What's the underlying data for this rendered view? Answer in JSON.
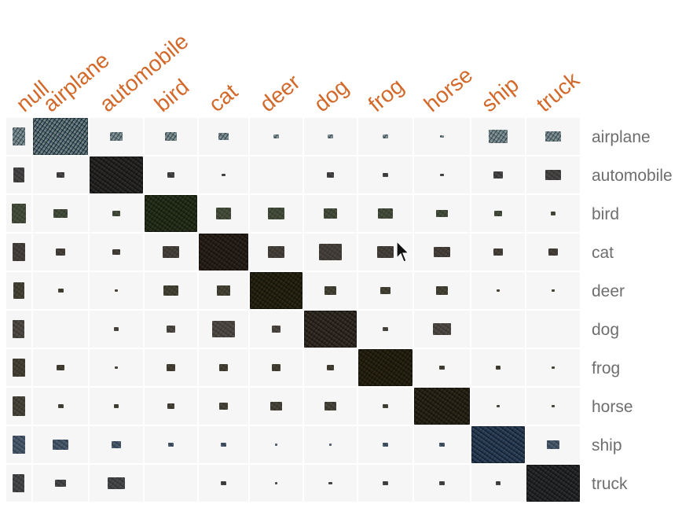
{
  "colors": {
    "label_orange": "#D2692A",
    "row_label_gray": "#6E6E6E",
    "cell_bg": "#F6F6F6"
  },
  "chart_data": {
    "type": "heatmap",
    "columns": [
      "null",
      "airplane",
      "automobile",
      "bird",
      "cat",
      "deer",
      "dog",
      "frog",
      "horse",
      "ship",
      "truck"
    ],
    "rows": [
      "airplane",
      "automobile",
      "bird",
      "cat",
      "deer",
      "dog",
      "frog",
      "horse",
      "ship",
      "truck"
    ],
    "values": [
      [
        0.25,
        1.0,
        0.06,
        0.05,
        0.04,
        0.01,
        0.01,
        0.01,
        0.005,
        0.12,
        0.08
      ],
      [
        0.18,
        0.02,
        1.0,
        0.02,
        0.005,
        0.0,
        0.02,
        0.01,
        0.005,
        0.03,
        0.08
      ],
      [
        0.3,
        0.06,
        0.02,
        1.0,
        0.1,
        0.1,
        0.07,
        0.07,
        0.04,
        0.02,
        0.01
      ],
      [
        0.25,
        0.03,
        0.02,
        0.1,
        1.0,
        0.1,
        0.2,
        0.1,
        0.08,
        0.03,
        0.03
      ],
      [
        0.2,
        0.01,
        0.005,
        0.08,
        0.08,
        1.0,
        0.05,
        0.04,
        0.05,
        0.005,
        0.005
      ],
      [
        0.22,
        0.0,
        0.01,
        0.03,
        0.2,
        0.03,
        1.0,
        0.01,
        0.1,
        0.0,
        0.0
      ],
      [
        0.25,
        0.02,
        0.005,
        0.03,
        0.03,
        0.03,
        0.02,
        1.0,
        0.01,
        0.01,
        0.005
      ],
      [
        0.28,
        0.01,
        0.01,
        0.02,
        0.03,
        0.05,
        0.05,
        0.01,
        1.0,
        0.005,
        0.005
      ],
      [
        0.25,
        0.08,
        0.03,
        0.01,
        0.01,
        0.002,
        0.002,
        0.01,
        0.01,
        1.0,
        0.06
      ],
      [
        0.22,
        0.04,
        0.1,
        0.0,
        0.01,
        0.002,
        0.005,
        0.01,
        0.01,
        0.01,
        1.0
      ]
    ]
  }
}
